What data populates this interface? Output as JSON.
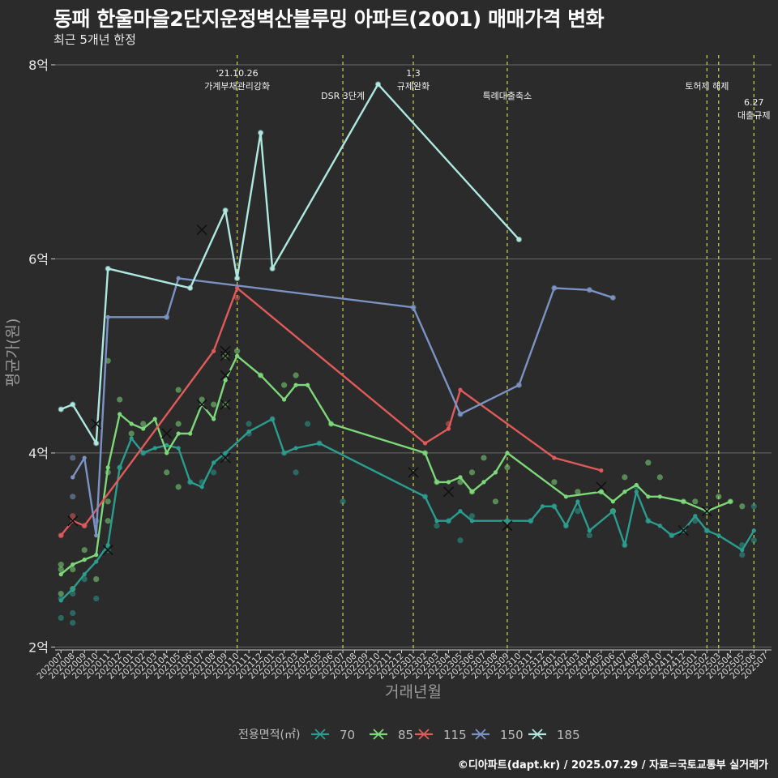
{
  "header": {
    "title": "동패 한울마을2단지운정벽산블루밍 아파트(2001) 매매가격 변화",
    "subtitle": "최근 5개년 한정"
  },
  "footer": {
    "credit": "©디아파트(dapt.kr) / 2025.07.29 / 자료=국토교통부 실거래가"
  },
  "chart_data": {
    "type": "line",
    "xlabel": "거래년월",
    "ylabel": "평균가(원)",
    "ylim": [
      1.97,
      8.1
    ],
    "yticks": [
      {
        "v": 2,
        "label": "2억"
      },
      {
        "v": 4,
        "label": "4억"
      },
      {
        "v": 6,
        "label": "6억"
      },
      {
        "v": 8,
        "label": "8억"
      }
    ],
    "categories": [
      "202007",
      "202008",
      "202009",
      "202010",
      "202011",
      "202012",
      "202101",
      "202102",
      "202103",
      "202104",
      "202105",
      "202106",
      "202107",
      "202108",
      "202109",
      "202110",
      "202111",
      "202112",
      "202201",
      "202202",
      "202203",
      "202204",
      "202205",
      "202206",
      "202207",
      "202208",
      "202209",
      "202210",
      "202211",
      "202212",
      "202301",
      "202302",
      "202303",
      "202304",
      "202305",
      "202306",
      "202307",
      "202308",
      "202309",
      "202310",
      "202311",
      "202312",
      "202401",
      "202402",
      "202403",
      "202404",
      "202405",
      "202406",
      "202407",
      "202408",
      "202409",
      "202410",
      "202411",
      "202412",
      "202501",
      "202502",
      "202503",
      "202504",
      "202505",
      "202506",
      "202507"
    ],
    "legend_title": "전용면적(㎡)",
    "legend_placement": "bottom",
    "series": [
      {
        "name": "70",
        "color": "#2a9d8f",
        "line": [
          [
            0,
            2.48
          ],
          [
            1,
            2.6
          ],
          [
            2,
            2.75
          ],
          [
            3,
            2.88
          ],
          [
            4,
            3.05
          ],
          [
            5,
            3.85
          ],
          [
            6,
            4.15
          ],
          [
            7,
            4.0
          ],
          [
            8,
            4.05
          ],
          [
            9,
            4.08
          ],
          [
            10,
            4.05
          ],
          [
            11,
            3.7
          ],
          [
            12,
            3.65
          ],
          [
            13,
            3.9
          ],
          [
            14,
            4.0
          ],
          [
            16,
            4.22
          ],
          [
            18,
            4.35
          ],
          [
            19,
            4.0
          ],
          [
            20,
            4.05
          ],
          [
            22,
            4.1
          ],
          [
            31,
            3.55
          ],
          [
            32,
            3.3
          ],
          [
            33,
            3.3
          ],
          [
            34,
            3.4
          ],
          [
            35,
            3.3
          ],
          [
            38,
            3.3
          ],
          [
            40,
            3.3
          ],
          [
            41,
            3.45
          ],
          [
            42,
            3.45
          ],
          [
            43,
            3.25
          ],
          [
            44,
            3.5
          ],
          [
            45,
            3.2
          ],
          [
            47,
            3.4
          ],
          [
            48,
            3.05
          ],
          [
            49,
            3.6
          ],
          [
            50,
            3.3
          ],
          [
            51,
            3.25
          ],
          [
            52,
            3.15
          ],
          [
            53,
            3.2
          ],
          [
            54,
            3.35
          ],
          [
            55,
            3.2
          ],
          [
            56,
            3.15
          ],
          [
            58,
            3.0
          ],
          [
            59,
            3.2
          ]
        ],
        "points": [
          [
            0,
            2.3
          ],
          [
            0,
            2.5
          ],
          [
            1,
            2.25
          ],
          [
            1,
            2.35
          ],
          [
            1,
            2.55
          ],
          [
            2,
            2.7
          ],
          [
            3,
            2.5
          ],
          [
            4,
            3.0
          ],
          [
            5,
            3.85
          ],
          [
            7,
            4.0
          ],
          [
            11,
            3.7
          ],
          [
            12,
            3.7
          ],
          [
            13,
            3.8
          ],
          [
            14,
            3.95
          ],
          [
            16,
            4.2
          ],
          [
            16,
            4.3
          ],
          [
            18,
            4.35
          ],
          [
            19,
            4.0
          ],
          [
            20,
            3.8
          ],
          [
            21,
            4.3
          ],
          [
            22,
            4.1
          ],
          [
            24,
            3.5
          ],
          [
            31,
            3.55
          ],
          [
            32,
            3.25
          ],
          [
            33,
            3.3
          ],
          [
            34,
            3.1
          ],
          [
            35,
            3.35
          ],
          [
            38,
            3.3
          ],
          [
            40,
            3.3
          ],
          [
            42,
            3.45
          ],
          [
            43,
            3.25
          ],
          [
            44,
            3.4
          ],
          [
            45,
            3.15
          ],
          [
            47,
            3.4
          ],
          [
            48,
            3.05
          ],
          [
            49,
            3.65
          ],
          [
            50,
            3.3
          ],
          [
            52,
            3.15
          ],
          [
            53,
            3.2
          ],
          [
            54,
            3.3
          ],
          [
            55,
            3.2
          ],
          [
            58,
            2.95
          ],
          [
            58,
            3.05
          ],
          [
            59,
            3.1
          ],
          [
            59,
            3.45
          ]
        ],
        "crosses": [
          [
            4,
            3.0
          ],
          [
            14,
            3.95
          ],
          [
            38,
            3.25
          ],
          [
            53,
            3.2
          ]
        ]
      },
      {
        "name": "85",
        "color": "#7dd87a",
        "line": [
          [
            0,
            2.75
          ],
          [
            1,
            2.85
          ],
          [
            2,
            2.9
          ],
          [
            3,
            2.95
          ],
          [
            4,
            3.85
          ],
          [
            5,
            4.4
          ],
          [
            6,
            4.3
          ],
          [
            7,
            4.25
          ],
          [
            8,
            4.35
          ],
          [
            9,
            4.0
          ],
          [
            10,
            4.2
          ],
          [
            11,
            4.2
          ],
          [
            12,
            4.5
          ],
          [
            13,
            4.35
          ],
          [
            14,
            4.75
          ],
          [
            15,
            5.0
          ],
          [
            17,
            4.8
          ],
          [
            19,
            4.55
          ],
          [
            20,
            4.7
          ],
          [
            21,
            4.7
          ],
          [
            23,
            4.3
          ],
          [
            31,
            4.0
          ],
          [
            32,
            3.7
          ],
          [
            33,
            3.7
          ],
          [
            34,
            3.75
          ],
          [
            35,
            3.6
          ],
          [
            36,
            3.7
          ],
          [
            37,
            3.8
          ],
          [
            38,
            4.0
          ],
          [
            43,
            3.55
          ],
          [
            46,
            3.6
          ],
          [
            47,
            3.5
          ],
          [
            48,
            3.6
          ],
          [
            49,
            3.67
          ],
          [
            50,
            3.55
          ],
          [
            51,
            3.55
          ],
          [
            53,
            3.5
          ],
          [
            55,
            3.4
          ],
          [
            57,
            3.5
          ]
        ],
        "points": [
          [
            0,
            2.8
          ],
          [
            0,
            2.85
          ],
          [
            0,
            2.55
          ],
          [
            1,
            2.6
          ],
          [
            1,
            2.8
          ],
          [
            2,
            3.0
          ],
          [
            3,
            2.7
          ],
          [
            4,
            3.3
          ],
          [
            4,
            3.5
          ],
          [
            4,
            3.8
          ],
          [
            4,
            4.95
          ],
          [
            5,
            4.55
          ],
          [
            6,
            4.2
          ],
          [
            7,
            4.3
          ],
          [
            9,
            3.8
          ],
          [
            10,
            3.65
          ],
          [
            10,
            4.3
          ],
          [
            10,
            4.65
          ],
          [
            12,
            4.55
          ],
          [
            13,
            4.5
          ],
          [
            14,
            4.5
          ],
          [
            14,
            5.0
          ],
          [
            15,
            5.05
          ],
          [
            17,
            4.8
          ],
          [
            19,
            4.7
          ],
          [
            20,
            4.8
          ],
          [
            23,
            4.3
          ],
          [
            31,
            4.0
          ],
          [
            32,
            3.7
          ],
          [
            34,
            3.7
          ],
          [
            35,
            3.6
          ],
          [
            35,
            3.8
          ],
          [
            36,
            3.95
          ],
          [
            37,
            3.5
          ],
          [
            38,
            3.85
          ],
          [
            42,
            3.7
          ],
          [
            44,
            3.6
          ],
          [
            46,
            3.6
          ],
          [
            47,
            3.4
          ],
          [
            48,
            3.75
          ],
          [
            50,
            3.9
          ],
          [
            51,
            3.75
          ],
          [
            53,
            3.5
          ],
          [
            54,
            3.5
          ],
          [
            55,
            3.4
          ],
          [
            56,
            3.55
          ],
          [
            57,
            3.5
          ],
          [
            58,
            3.45
          ]
        ],
        "crosses": [
          [
            9,
            4.2
          ],
          [
            12,
            4.5
          ],
          [
            14,
            4.8
          ],
          [
            14,
            5.0
          ],
          [
            14,
            4.5
          ],
          [
            46,
            3.65
          ],
          [
            55,
            3.4
          ]
        ]
      },
      {
        "name": "115",
        "color": "#e05a5a",
        "line": [
          [
            0,
            3.15
          ],
          [
            1,
            3.3
          ],
          [
            2,
            3.25
          ],
          [
            13,
            5.05
          ],
          [
            15,
            5.7
          ],
          [
            31,
            4.1
          ],
          [
            33,
            4.25
          ],
          [
            34,
            4.65
          ],
          [
            42,
            3.95
          ],
          [
            46,
            3.82
          ]
        ],
        "points": [
          [
            0,
            3.15
          ],
          [
            1,
            3.35
          ],
          [
            2,
            3.25
          ],
          [
            15,
            5.6
          ],
          [
            33,
            4.3
          ]
        ],
        "crosses": [
          [
            14,
            5.05
          ]
        ]
      },
      {
        "name": "150",
        "color": "#7b93c4",
        "line": [
          [
            1,
            3.75
          ],
          [
            2,
            3.95
          ],
          [
            3,
            3.15
          ],
          [
            4,
            5.4
          ],
          [
            9,
            5.4
          ],
          [
            10,
            5.8
          ],
          [
            30,
            5.5
          ],
          [
            34,
            4.4
          ],
          [
            39,
            4.7
          ],
          [
            42,
            5.7
          ],
          [
            45,
            5.68
          ],
          [
            47,
            5.6
          ]
        ],
        "points": [
          [
            1,
            3.95
          ],
          [
            1,
            3.55
          ],
          [
            3,
            3.3
          ],
          [
            9,
            5.4
          ],
          [
            30,
            5.5
          ],
          [
            34,
            4.4
          ],
          [
            39,
            4.7
          ],
          [
            42,
            5.7
          ],
          [
            45,
            5.68
          ],
          [
            47,
            5.6
          ]
        ],
        "crosses": [
          [
            1,
            3.3
          ]
        ]
      },
      {
        "name": "185",
        "color": "#aee8e0",
        "line": [
          [
            0,
            4.45
          ],
          [
            1,
            4.5
          ],
          [
            3,
            4.1
          ],
          [
            4,
            5.9
          ],
          [
            11,
            5.7
          ],
          [
            14,
            6.5
          ],
          [
            15,
            5.8
          ],
          [
            17,
            7.3
          ],
          [
            18,
            5.9
          ],
          [
            27,
            7.8
          ],
          [
            39,
            6.2
          ]
        ],
        "points": [
          [
            0,
            4.45
          ],
          [
            1,
            4.5
          ],
          [
            3,
            4.1
          ],
          [
            4,
            5.9
          ],
          [
            11,
            5.7
          ],
          [
            14,
            6.5
          ],
          [
            15,
            5.8
          ],
          [
            17,
            7.3
          ],
          [
            18,
            5.9
          ],
          [
            27,
            7.8
          ],
          [
            39,
            6.2
          ]
        ],
        "crosses": [
          [
            3,
            4.3
          ],
          [
            12,
            6.3
          ],
          [
            30,
            3.8
          ],
          [
            33,
            3.6
          ]
        ]
      }
    ],
    "annotations": [
      {
        "x": 15,
        "lines": [
          "'21.10.26",
          "가계부채관리강화"
        ],
        "yrow": 0
      },
      {
        "x": 24,
        "lines": [
          "DSR 3단계"
        ],
        "yrow": 2
      },
      {
        "x": 30,
        "lines": [
          "1.3",
          "규제완화"
        ],
        "yrow": 0
      },
      {
        "x": 38,
        "lines": [
          "특례대출축소"
        ],
        "yrow": 2
      },
      {
        "x": 55,
        "lines": [
          "토허제 해제"
        ],
        "yrow": 1
      },
      {
        "x": 56,
        "lines": [],
        "yrow": 1
      },
      {
        "x": 59,
        "lines": [
          "6.27",
          "대출규제"
        ],
        "yrow": 3
      }
    ]
  }
}
